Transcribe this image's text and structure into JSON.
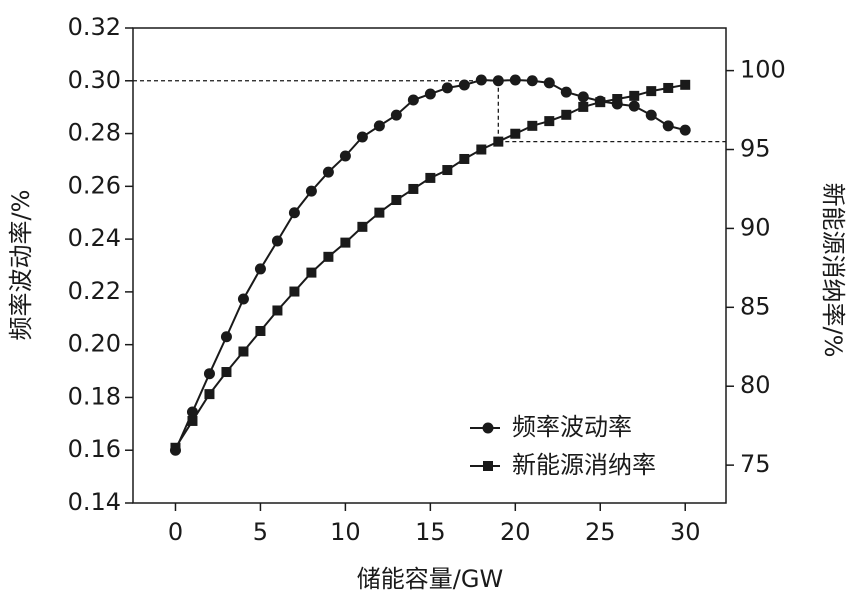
{
  "chart_data": {
    "type": "line",
    "x_label": "储能容量/GW",
    "y_label": "频率波动率/%",
    "y2_label": "新能源消纳率/%",
    "x": [
      0,
      1,
      2,
      3,
      4,
      5,
      6,
      7,
      8,
      9,
      10,
      11,
      12,
      13,
      14,
      15,
      16,
      17,
      18,
      19,
      20,
      21,
      22,
      23,
      24,
      25,
      26,
      27,
      28,
      29,
      30
    ],
    "series": [
      {
        "name": "频率波动率",
        "color": "#1a1a1a",
        "marker": "circle",
        "values": [
          0.16,
          0.1745,
          0.189,
          0.203,
          0.2173,
          0.2287,
          0.2393,
          0.25,
          0.2582,
          0.2654,
          0.2715,
          0.2787,
          0.2829,
          0.287,
          0.2927,
          0.295,
          0.2973,
          0.2984,
          0.3003,
          0.3,
          0.3003,
          0.3,
          0.2992,
          0.2957,
          0.2939,
          0.2923,
          0.2912,
          0.2904,
          0.287,
          0.2829,
          0.2813
        ]
      },
      {
        "name": "新能源消纳率",
        "color": "#1a1a1a",
        "marker": "square",
        "axis": "y2",
        "values": [
          76.1,
          77.8,
          79.5,
          80.9,
          82.2,
          83.5,
          84.8,
          86.0,
          87.2,
          88.2,
          89.1,
          90.1,
          91.0,
          91.8,
          92.5,
          93.2,
          93.7,
          94.4,
          95.0,
          95.5,
          96.0,
          96.5,
          96.8,
          97.2,
          97.7,
          98.0,
          98.2,
          98.4,
          98.7,
          98.9,
          99.1
        ]
      }
    ],
    "reference": {
      "x": 19,
      "y": 0.3,
      "y2": 95.5
    },
    "xlim": [
      -2.5,
      32.4
    ],
    "xticks": [
      0,
      5,
      10,
      15,
      20,
      25,
      30
    ],
    "ylim": [
      0.14,
      0.32
    ],
    "yticks": [
      0.14,
      0.16,
      0.18,
      {
        "value": 0.2,
        "label": "0.20"
      },
      0.22,
      0.24,
      0.26,
      0.28,
      {
        "value": 0.3,
        "label": "0.30"
      },
      0.32
    ],
    "y2lim": [
      72.6,
      102.7
    ],
    "y2ticks": [
      75,
      80,
      85,
      90,
      95,
      100
    ],
    "legend": "lower right",
    "grid": false
  }
}
